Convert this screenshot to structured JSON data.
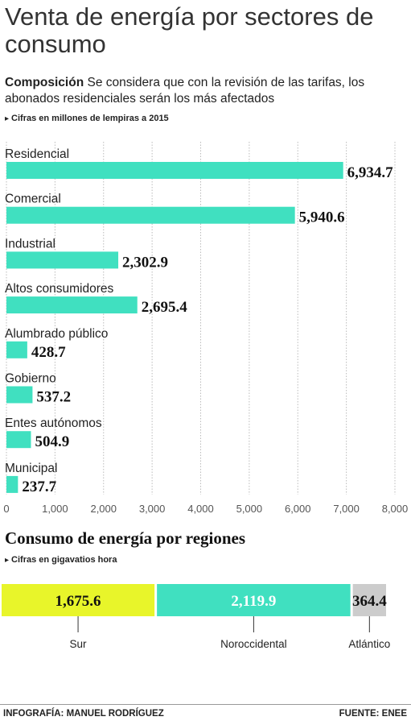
{
  "header": {
    "title": "Venta de energía por sectores de consumo",
    "subtitle_bold": "Composición",
    "subtitle_text": " Se considera que con la revisión de las tarifas, los abonados residenciales serán los más afectados",
    "note1": "Cifras en millones de lempiras a 2015"
  },
  "chart_data": [
    {
      "type": "bar",
      "orientation": "horizontal",
      "categories": [
        "Residencial",
        "Comercial",
        "Industrial",
        "Altos consumidores",
        "Alumbrado público",
        "Gobierno",
        "Entes autónomos",
        "Municipal"
      ],
      "values": [
        6934.7,
        5940.6,
        2302.9,
        2695.4,
        428.7,
        537.2,
        504.9,
        237.7
      ],
      "value_labels": [
        "6,934.7",
        "5,940.6",
        "2,302.9",
        "2,695.4",
        "428.7",
        "537.2",
        "504.9",
        "237.7"
      ],
      "xlim": [
        0,
        8000
      ],
      "xticks": [
        0,
        1000,
        2000,
        3000,
        4000,
        5000,
        6000,
        7000,
        8000
      ],
      "xtick_labels": [
        "0",
        "1,000",
        "2,000",
        "3,000",
        "4,000",
        "5,000",
        "6,000",
        "7,000",
        "8,000"
      ],
      "grid": true,
      "bar_color": "#40e0c0"
    },
    {
      "type": "bar",
      "orientation": "stacked-horizontal",
      "title": "Consumo de energía por regiones",
      "note": "Cifras en gigavatios hora",
      "categories": [
        "Sur",
        "Noroccidental",
        "Atlántico"
      ],
      "values": [
        1675.6,
        2119.9,
        364.4
      ],
      "value_labels": [
        "1,675.6",
        "2,119.9",
        "364.4"
      ],
      "colors": [
        "#e8f52a",
        "#40e0c0",
        "#cccccc"
      ]
    }
  ],
  "footer": {
    "credit": "INFOGRAFÍA: MANUEL RODRÍGUEZ",
    "source": "FUENTE: ENEE"
  }
}
